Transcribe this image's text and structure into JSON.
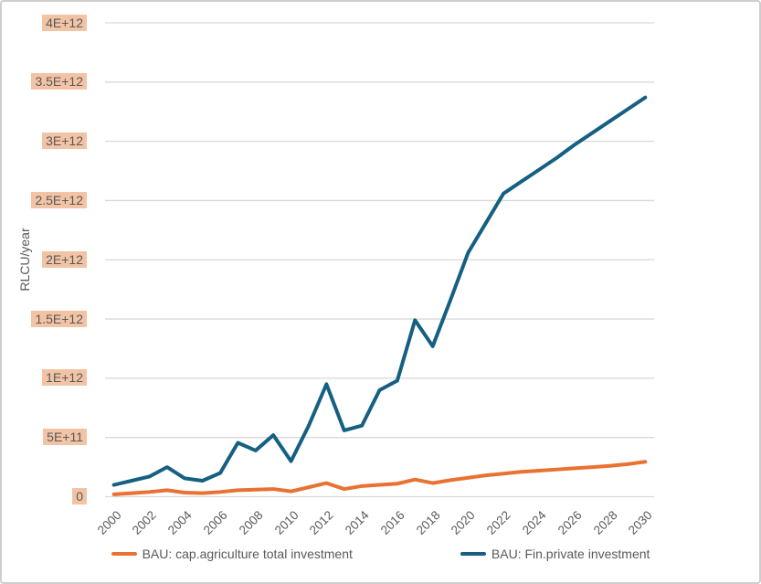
{
  "chart_data": {
    "type": "line",
    "title": "",
    "xlabel": "",
    "ylabel": "RLCU/year",
    "x": [
      2000,
      2001,
      2002,
      2003,
      2004,
      2005,
      2006,
      2007,
      2008,
      2009,
      2010,
      2011,
      2012,
      2013,
      2014,
      2015,
      2016,
      2017,
      2018,
      2019,
      2020,
      2021,
      2022,
      2023,
      2024,
      2025,
      2026,
      2027,
      2028,
      2029,
      2030
    ],
    "x_tick_labels": [
      "2000",
      "2002",
      "2004",
      "2006",
      "2008",
      "2010",
      "2012",
      "2014",
      "2016",
      "2018",
      "2020",
      "2022",
      "2024",
      "2026",
      "2028",
      "2030"
    ],
    "ylim": [
      0,
      4000000000000.0
    ],
    "y_ticks": {
      "values": [
        0,
        500000000000.0,
        1000000000000.0,
        1500000000000.0,
        2000000000000.0,
        2500000000000.0,
        3000000000000.0,
        3500000000000.0,
        4000000000000.0
      ],
      "labels": [
        "0",
        "5E+11",
        "1E+12",
        "1.5E+12",
        "2E+12",
        "2.5E+12",
        "3E+12",
        "3.5E+12",
        "4E+12"
      ]
    },
    "grid": "horizontal",
    "legend_position": "bottom",
    "series": [
      {
        "name": "BAU: cap.agriculture total investment",
        "color": "#E97132",
        "values": [
          20000000000.0,
          30000000000.0,
          40000000000.0,
          55000000000.0,
          35000000000.0,
          30000000000.0,
          40000000000.0,
          55000000000.0,
          60000000000.0,
          65000000000.0,
          45000000000.0,
          80000000000.0,
          115000000000.0,
          65000000000.0,
          90000000000.0,
          100000000000.0,
          110000000000.0,
          145000000000.0,
          115000000000.0,
          140000000000.0,
          160000000000.0,
          180000000000.0,
          195000000000.0,
          210000000000.0,
          220000000000.0,
          230000000000.0,
          240000000000.0,
          250000000000.0,
          260000000000.0,
          275000000000.0,
          295000000000.0
        ]
      },
      {
        "name": "BAU: Fin.private investment",
        "color": "#156082",
        "values": [
          100000000000.0,
          135000000000.0,
          170000000000.0,
          250000000000.0,
          155000000000.0,
          135000000000.0,
          200000000000.0,
          455000000000.0,
          390000000000.0,
          520000000000.0,
          300000000000.0,
          600000000000.0,
          950000000000.0,
          560000000000.0,
          600000000000.0,
          900000000000.0,
          980000000000.0,
          1490000000000.0,
          1270000000000.0,
          1660000000000.0,
          2060000000000.0,
          2310000000000.0,
          2560000000000.0,
          2660000000000.0,
          2760000000000.0,
          2860000000000.0,
          2970000000000.0,
          3070000000000.0,
          3170000000000.0,
          3270000000000.0,
          3370000000000.0
        ]
      }
    ]
  },
  "colors": {
    "gridline": "#D9D9D9",
    "axis_text": "#595959",
    "ytick_highlight": "#F2C3A5",
    "agriculture_line": "#E97132",
    "private_line": "#156082",
    "frame_border": "#CDCDCD",
    "background": "#FFFFFF"
  }
}
